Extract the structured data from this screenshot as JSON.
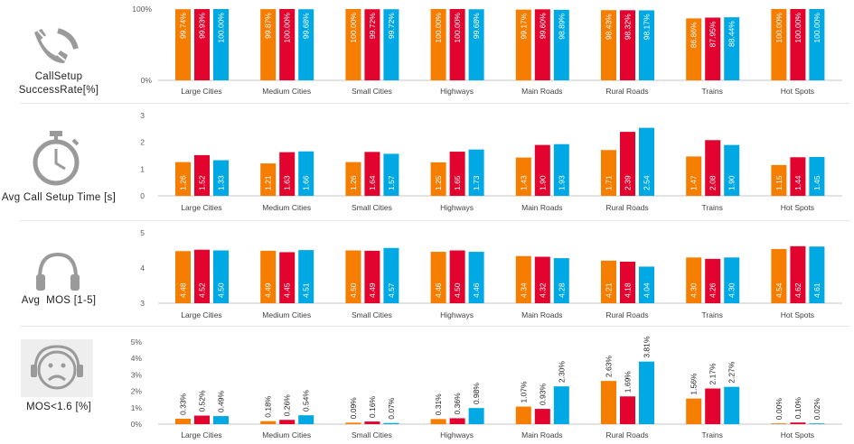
{
  "colors": {
    "series1": "#F57D00",
    "series2": "#E3032F",
    "series3": "#00A9E3"
  },
  "rows": [
    {
      "label_line1": "CallSetup",
      "label_line2": "SuccessRate[%]",
      "icon": "phone-icon"
    },
    {
      "label_line1": "Avg Call Setup Time [s]",
      "icon": "stopwatch-icon"
    },
    {
      "label_line1": "Avg  MOS [1-5]",
      "icon": "headphones-icon"
    },
    {
      "label_line1": "MOS<1.6 [%]",
      "icon": "sad-face-headphones-icon"
    }
  ],
  "chart_data": [
    {
      "type": "bar",
      "ylabel": "CallSetup SuccessRate[%]",
      "categories": [
        "Large Cities",
        "Medium Cities",
        "Small Cities",
        "Highways",
        "Main Roads",
        "Rural Roads",
        "Trains",
        "Hot Spots"
      ],
      "ylim": [
        0,
        100
      ],
      "yticks": [
        "0%",
        "100%"
      ],
      "yticks_values": [
        0,
        100
      ],
      "label_position": "inside-top",
      "series": [
        {
          "values": [
            99.74,
            99.87,
            100.0,
            100.0,
            99.17,
            98.43,
            86.86,
            100.0
          ],
          "labels": [
            "99.74%",
            "99.87%",
            "100.00%",
            "100.00%",
            "99.17%",
            "98.43%",
            "86.86%",
            "100.00%"
          ]
        },
        {
          "values": [
            99.93,
            100.0,
            99.72,
            100.0,
            99.6,
            98.32,
            87.95,
            100.0
          ],
          "labels": [
            "99.93%",
            "100.00%",
            "99.72%",
            "100.00%",
            "99.60%",
            "98.32%",
            "87.95%",
            "100.00%"
          ]
        },
        {
          "values": [
            100.0,
            99.68,
            99.72,
            99.68,
            98.89,
            98.17,
            88.44,
            100.0
          ],
          "labels": [
            "100.00%",
            "99.68%",
            "99.72%",
            "99.68%",
            "98.89%",
            "98.17%",
            "88.44%",
            "100.00%"
          ]
        }
      ]
    },
    {
      "type": "bar",
      "ylabel": "Avg Call Setup Time [s]",
      "categories": [
        "Large Cities",
        "Medium Cities",
        "Small Cities",
        "Highways",
        "Main Roads",
        "Rural Roads",
        "Trains",
        "Hot Spots"
      ],
      "ylim": [
        0,
        3
      ],
      "yticks": [
        "0",
        "1",
        "2",
        "3"
      ],
      "yticks_values": [
        0,
        1,
        2,
        3
      ],
      "label_position": "inside-base",
      "series": [
        {
          "values": [
            1.26,
            1.21,
            1.26,
            1.25,
            1.43,
            1.71,
            1.47,
            1.15
          ],
          "labels": [
            "1.26",
            "1.21",
            "1.26",
            "1.25",
            "1.43",
            "1.71",
            "1.47",
            "1.15"
          ]
        },
        {
          "values": [
            1.52,
            1.63,
            1.64,
            1.65,
            1.9,
            2.39,
            2.08,
            1.44
          ],
          "labels": [
            "1.52",
            "1.63",
            "1.64",
            "1.65",
            "1.90",
            "2.39",
            "2.08",
            "1.44"
          ]
        },
        {
          "values": [
            1.33,
            1.66,
            1.57,
            1.73,
            1.93,
            2.54,
            1.9,
            1.45
          ],
          "labels": [
            "1.33",
            "1.66",
            "1.57",
            "1.73",
            "1.93",
            "2.54",
            "1.90",
            "1.45"
          ]
        }
      ]
    },
    {
      "type": "bar",
      "ylabel": "Avg  MOS [1-5]",
      "categories": [
        "Large Cities",
        "Medium Cities",
        "Small Cities",
        "Highways",
        "Main Roads",
        "Rural Roads",
        "Trains",
        "Hot Spots"
      ],
      "ylim": [
        3,
        5
      ],
      "yticks": [
        "3",
        "4",
        "5"
      ],
      "yticks_values": [
        3,
        4,
        5
      ],
      "label_position": "inside-base",
      "series": [
        {
          "values": [
            4.48,
            4.49,
            4.5,
            4.46,
            4.34,
            4.21,
            4.3,
            4.54
          ],
          "labels": [
            "4.48",
            "4.49",
            "4.50",
            "4.46",
            "4.34",
            "4.21",
            "4.30",
            "4.54"
          ]
        },
        {
          "values": [
            4.52,
            4.45,
            4.49,
            4.5,
            4.32,
            4.18,
            4.26,
            4.62
          ],
          "labels": [
            "4.52",
            "4.45",
            "4.49",
            "4.50",
            "4.32",
            "4.18",
            "4.26",
            "4.62"
          ]
        },
        {
          "values": [
            4.5,
            4.51,
            4.57,
            4.46,
            4.28,
            4.04,
            4.3,
            4.61
          ],
          "labels": [
            "4.50",
            "4.51",
            "4.57",
            "4.46",
            "4.28",
            "4.04",
            "4.30",
            "4.61"
          ]
        }
      ]
    },
    {
      "type": "bar",
      "ylabel": "MOS<1.6 [%]",
      "categories": [
        "Large Cities",
        "Medium Cities",
        "Small Cities",
        "Highways",
        "Main Roads",
        "Rural Roads",
        "Trains",
        "Hot Spots"
      ],
      "ylim": [
        0,
        5
      ],
      "yticks": [
        "0%",
        "1%",
        "2%",
        "3%",
        "4%",
        "5%"
      ],
      "yticks_values": [
        0,
        1,
        2,
        3,
        4,
        5
      ],
      "label_position": "outside-end",
      "series": [
        {
          "values": [
            0.33,
            0.18,
            0.09,
            0.31,
            1.07,
            2.63,
            1.56,
            0.0
          ],
          "labels": [
            "0.33%",
            "0.18%",
            "0.09%",
            "0.31%",
            "1.07%",
            "2.63%",
            "1.56%",
            "0.00%"
          ]
        },
        {
          "values": [
            0.52,
            0.26,
            0.16,
            0.36,
            0.93,
            1.69,
            2.17,
            0.1
          ],
          "labels": [
            "0.52%",
            "0.26%",
            "0.16%",
            "0.36%",
            "0.93%",
            "1.69%",
            "2.17%",
            "0.10%"
          ]
        },
        {
          "values": [
            0.49,
            0.54,
            0.07,
            0.98,
            2.3,
            3.81,
            2.27,
            0.02
          ],
          "labels": [
            "0.49%",
            "0.54%",
            "0.07%",
            "0.98%",
            "2.30%",
            "3.81%",
            "2.27%",
            "0.02%"
          ]
        }
      ]
    }
  ]
}
